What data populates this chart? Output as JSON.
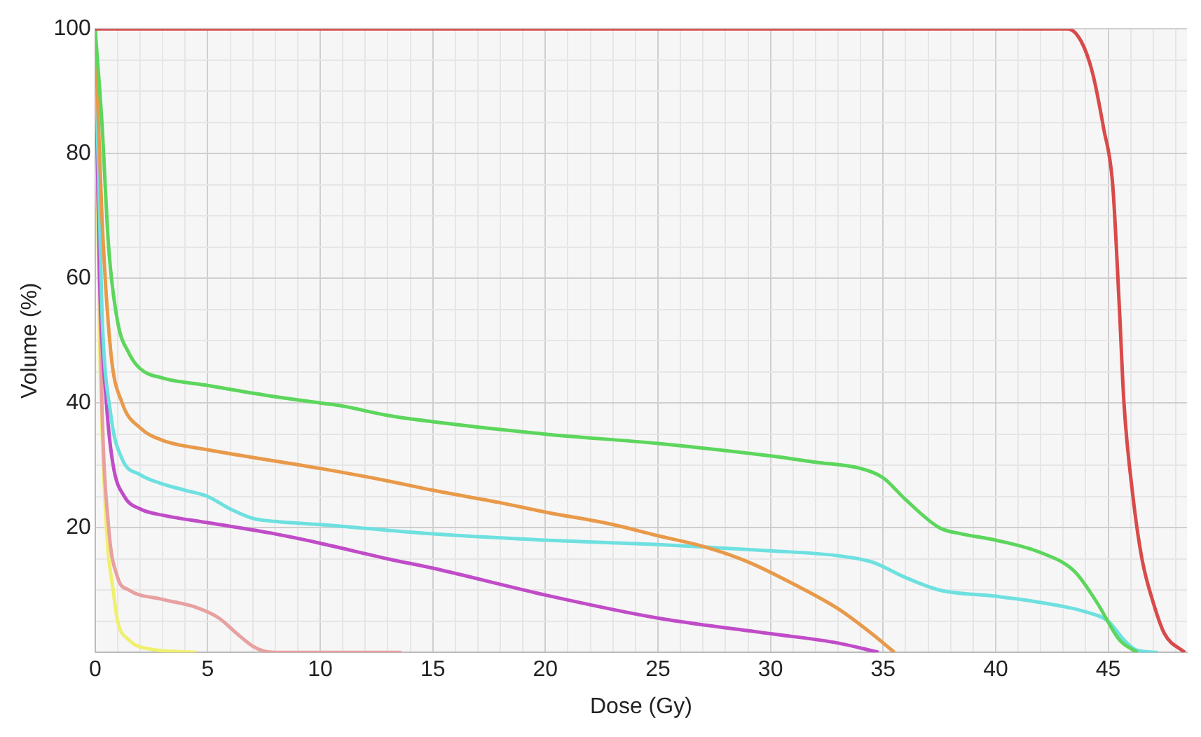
{
  "chart_data": {
    "type": "line",
    "xlabel": "Dose (Gy)",
    "ylabel": "Volume (%)",
    "xlim": [
      0,
      48.5
    ],
    "ylim": [
      0,
      100
    ],
    "xticks": [
      0,
      {
        "value": 1,
        "label": null
      },
      {
        "value": 2,
        "label": null
      },
      {
        "value": 3,
        "label": null
      },
      {
        "value": 4,
        "label": null
      },
      5,
      {
        "value": 6,
        "label": null
      },
      {
        "value": 7,
        "label": null
      },
      {
        "value": 8,
        "label": null
      },
      {
        "value": 9,
        "label": null
      },
      10,
      {
        "value": 11,
        "label": null
      },
      {
        "value": 12,
        "label": null
      },
      {
        "value": 13,
        "label": null
      },
      {
        "value": 14,
        "label": null
      },
      15,
      {
        "value": 16,
        "label": null
      },
      {
        "value": 17,
        "label": null
      },
      {
        "value": 18,
        "label": null
      },
      {
        "value": 19,
        "label": null
      },
      20,
      {
        "value": 21,
        "label": null
      },
      {
        "value": 22,
        "label": null
      },
      {
        "value": 23,
        "label": null
      },
      {
        "value": 24,
        "label": null
      },
      25,
      {
        "value": 26,
        "label": null
      },
      {
        "value": 27,
        "label": null
      },
      {
        "value": 28,
        "label": null
      },
      {
        "value": 29,
        "label": null
      },
      30,
      {
        "value": 31,
        "label": null
      },
      {
        "value": 32,
        "label": null
      },
      {
        "value": 33,
        "label": null
      },
      {
        "value": 34,
        "label": null
      },
      35,
      {
        "value": 36,
        "label": null
      },
      {
        "value": 37,
        "label": null
      },
      {
        "value": 38,
        "label": null
      },
      {
        "value": 39,
        "label": null
      },
      40,
      {
        "value": 41,
        "label": null
      },
      {
        "value": 42,
        "label": null
      },
      {
        "value": 43,
        "label": null
      },
      {
        "value": 44,
        "label": null
      },
      45,
      {
        "value": 46,
        "label": null
      },
      {
        "value": 47,
        "label": null
      },
      {
        "value": 48,
        "label": null
      }
    ],
    "yticks": [
      {
        "value": 0,
        "label": null
      },
      {
        "value": 5,
        "label": null
      },
      {
        "value": 10,
        "label": null
      },
      {
        "value": 15,
        "label": null
      },
      20,
      {
        "value": 25,
        "label": null
      },
      {
        "value": 30,
        "label": null
      },
      {
        "value": 35,
        "label": null
      },
      40,
      {
        "value": 45,
        "label": null
      },
      {
        "value": 50,
        "label": null
      },
      {
        "value": 55,
        "label": null
      },
      60,
      {
        "value": 65,
        "label": null
      },
      {
        "value": 70,
        "label": null
      },
      {
        "value": 75,
        "label": null
      },
      80,
      {
        "value": 85,
        "label": null
      },
      {
        "value": 90,
        "label": null
      },
      {
        "value": 95,
        "label": null
      },
      100
    ],
    "grid": true,
    "legend": false,
    "marker": "none",
    "line_style": "solid",
    "series": [
      {
        "color": "#d94a4a",
        "x": [
          0,
          43.2,
          43.8,
          44.3,
          44.8,
          45.2,
          45.5,
          45.7,
          46.1,
          46.5,
          47,
          47.5,
          48.4
        ],
        "values": [
          100,
          100,
          98,
          93,
          84,
          75,
          55,
          40,
          25,
          15,
          8,
          3,
          0
        ]
      },
      {
        "color": "#5cd65c",
        "x": [
          0,
          0.3,
          0.6,
          1,
          1.5,
          2,
          3,
          5,
          8,
          10,
          11,
          13,
          15,
          20,
          25,
          30,
          32,
          34,
          35,
          36,
          37.5,
          38.5,
          40,
          42,
          43.5,
          44.5,
          45.5,
          46.3
        ],
        "values": [
          100,
          85,
          65,
          53,
          48,
          45.5,
          44,
          42.8,
          41,
          40,
          39.5,
          38,
          37,
          35,
          33.5,
          31.5,
          30.5,
          29.5,
          28,
          24.5,
          20,
          19,
          18,
          16,
          13,
          8,
          2,
          0
        ]
      },
      {
        "color": "#e89a4a",
        "x": [
          0,
          0.3,
          0.7,
          1.2,
          2,
          3,
          5,
          10,
          13,
          15,
          18,
          20,
          23,
          25,
          27,
          29,
          31,
          33,
          34.5,
          35.5
        ],
        "values": [
          100,
          70,
          48,
          40,
          36,
          34,
          32.5,
          29.5,
          27.5,
          26,
          24,
          22.5,
          20.5,
          18.7,
          17,
          14.5,
          11,
          7,
          3,
          0
        ]
      },
      {
        "color": "#6ee0e0",
        "x": [
          0,
          0.3,
          0.7,
          1.2,
          2,
          3,
          4,
          5,
          6,
          7,
          8,
          10,
          15,
          20,
          25,
          30,
          33,
          34.5,
          36,
          37.5,
          40,
          42,
          44,
          45,
          45.7,
          46.3,
          47.2
        ],
        "values": [
          100,
          55,
          38,
          31,
          28.5,
          27,
          26,
          25,
          23,
          21.5,
          21,
          20.5,
          19,
          18,
          17.3,
          16.3,
          15.5,
          14.5,
          12,
          10,
          9,
          8,
          6.5,
          5,
          2,
          0.3,
          0
        ]
      },
      {
        "color": "#c04cc8",
        "x": [
          0,
          0.2,
          0.5,
          0.8,
          1.3,
          2,
          3,
          5,
          8,
          10,
          13,
          15,
          20,
          25,
          30,
          33,
          34.8
        ],
        "values": [
          100,
          60,
          40,
          30,
          25,
          23,
          22,
          20.8,
          19,
          17.5,
          15,
          13.5,
          9.2,
          5.5,
          3,
          1.5,
          0
        ]
      },
      {
        "color": "#e8a0a0",
        "x": [
          0,
          0.3,
          0.6,
          1,
          1.5,
          3,
          4.5,
          5.5,
          6.3,
          7,
          7.5,
          8,
          13.6
        ],
        "values": [
          100,
          40,
          20,
          12,
          10,
          8.5,
          7.2,
          5.5,
          3,
          1,
          0.2,
          0,
          0
        ]
      },
      {
        "color": "#f0f070",
        "x": [
          0,
          0.2,
          0.5,
          0.8,
          1,
          1.5,
          2.5,
          4.5
        ],
        "values": [
          100,
          50,
          20,
          10,
          5,
          2,
          0.5,
          0
        ]
      }
    ]
  }
}
